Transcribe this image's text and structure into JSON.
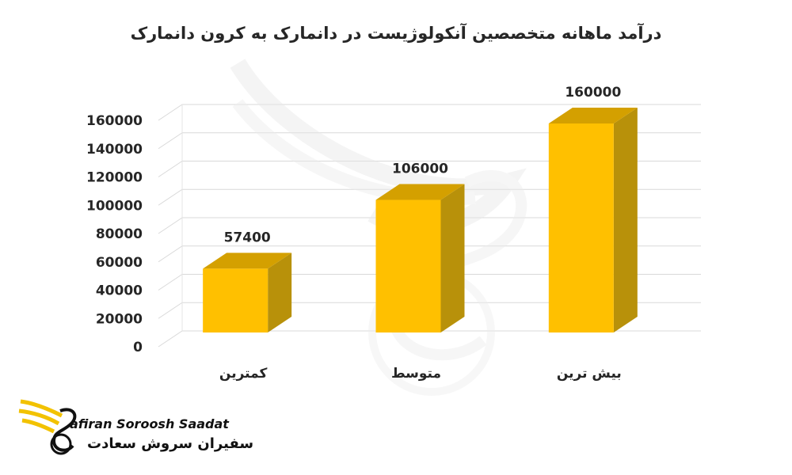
{
  "chart_data": {
    "type": "bar",
    "title": "درآمد ماهانه متخصصین آنکولوژیست در دانمارک به کرون دانمارک",
    "categories": [
      "کمترین",
      "متوسط",
      "بیش ترین"
    ],
    "values": [
      57400,
      106000,
      160000
    ],
    "data_labels": [
      "57400",
      "106000",
      "160000"
    ],
    "ylim": [
      0,
      160000
    ],
    "yticks": [
      0,
      20000,
      40000,
      60000,
      80000,
      100000,
      120000,
      140000,
      160000
    ],
    "ytick_labels": [
      "0",
      "20000",
      "40000",
      "60000",
      "80000",
      "100000",
      "120000",
      "140000",
      "160000"
    ],
    "grid": true,
    "bar_colors": {
      "front": "#FFC000",
      "side": "#B8910A",
      "top": "#D4A000"
    }
  },
  "logo": {
    "text_en": "afiran Soroosh Saadat",
    "text_fa": "سفیران سروش سعادت",
    "accent": "#F2C200"
  }
}
